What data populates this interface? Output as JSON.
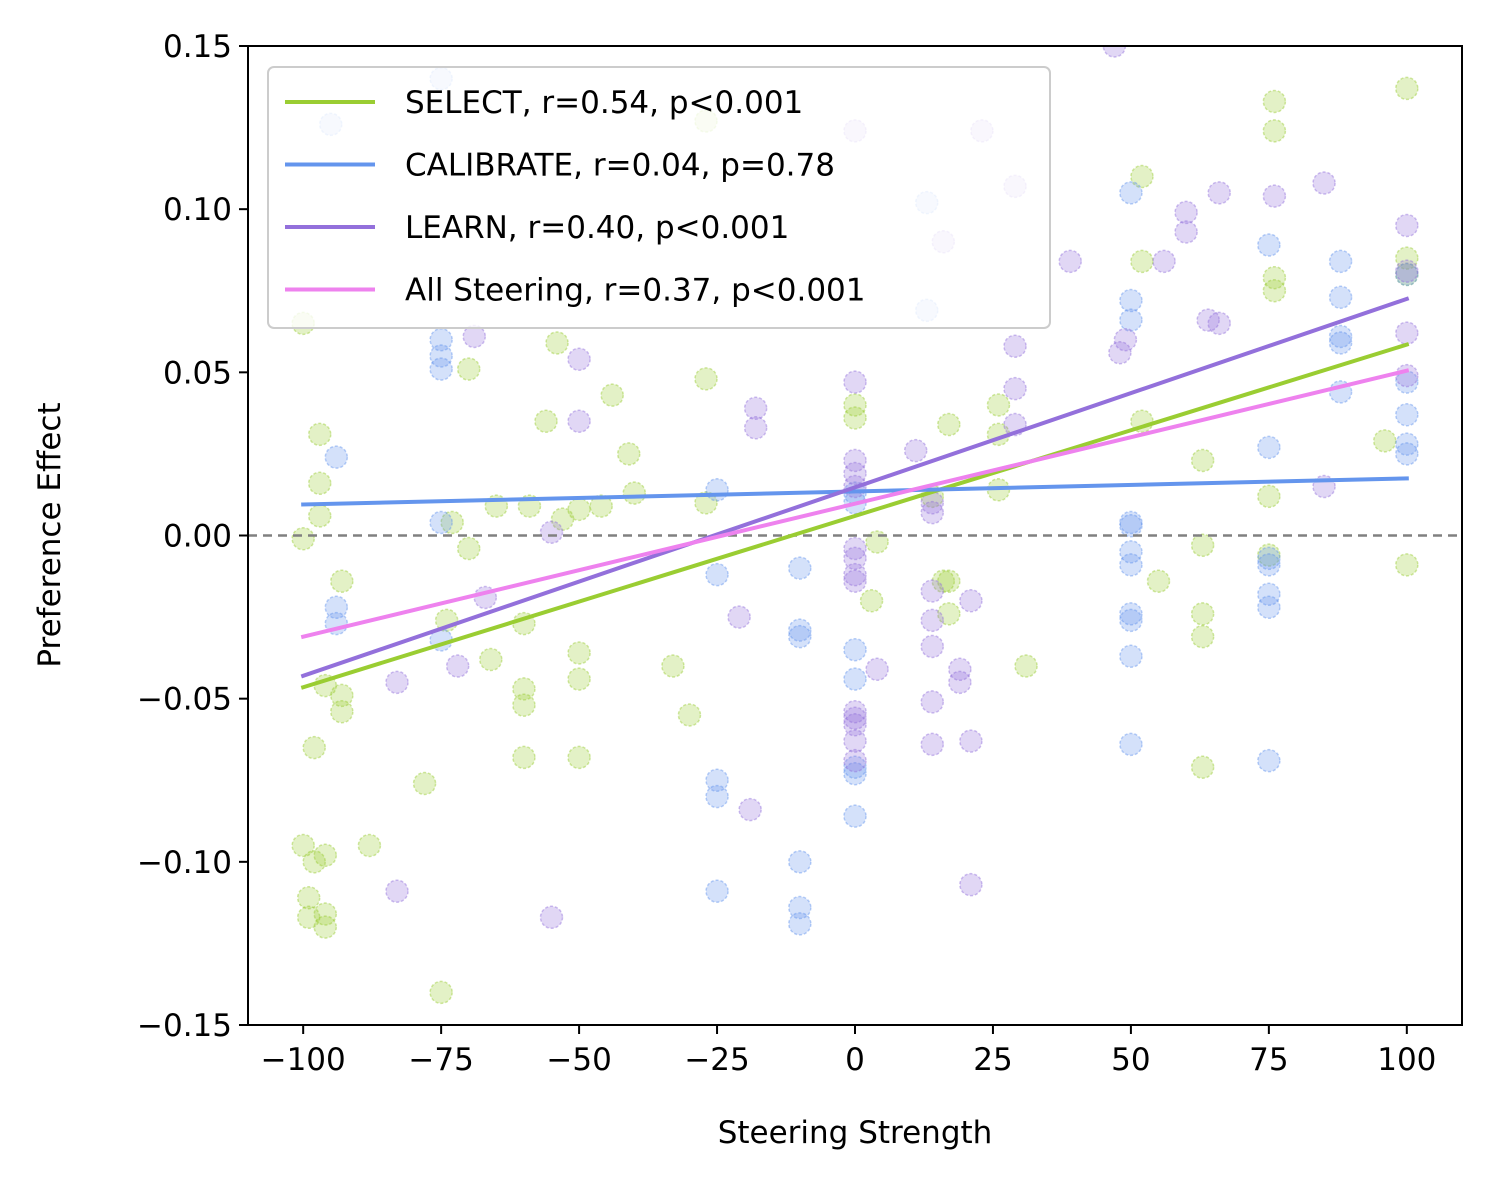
{
  "chart_data": {
    "type": "scatter",
    "title": "",
    "xlabel": "Steering Strength",
    "ylabel": "Preference Effect",
    "xlim": [
      -110,
      110
    ],
    "ylim": [
      -0.15,
      0.15
    ],
    "xticks": [
      -100,
      -75,
      -50,
      -25,
      0,
      25,
      50,
      75,
      100
    ],
    "xtick_labels": [
      "−100",
      "−75",
      "−50",
      "−25",
      "0",
      "25",
      "50",
      "75",
      "100"
    ],
    "yticks": [
      -0.15,
      -0.1,
      -0.05,
      0.0,
      0.05,
      0.1,
      0.15
    ],
    "ytick_labels": [
      "−0.15",
      "−0.10",
      "−0.05",
      "0.00",
      "0.05",
      "0.10",
      "0.15"
    ],
    "grid": false,
    "reference_line": {
      "y": 0.0,
      "color": "#808080",
      "style": "dashed"
    },
    "legend_position": "upper-left",
    "series": [
      {
        "name": "SELECT",
        "label": "SELECT, r=0.54, p<0.001",
        "color": "#9acd32",
        "fit": {
          "x": [
            -100,
            100
          ],
          "y": [
            -0.0465,
            0.0585
          ]
        },
        "points": [
          [
            -100,
            0.065
          ],
          [
            -100,
            -0.001
          ],
          [
            -100,
            -0.095
          ],
          [
            -99,
            -0.111
          ],
          [
            -99,
            -0.117
          ],
          [
            -98,
            -0.065
          ],
          [
            -98,
            -0.1
          ],
          [
            -97,
            0.031
          ],
          [
            -97,
            0.016
          ],
          [
            -97,
            0.006
          ],
          [
            -96,
            -0.046
          ],
          [
            -96,
            -0.116
          ],
          [
            -96,
            -0.12
          ],
          [
            -96,
            -0.098
          ],
          [
            -93,
            -0.014
          ],
          [
            -93,
            -0.049
          ],
          [
            -93,
            -0.054
          ],
          [
            -88,
            -0.095
          ],
          [
            -78,
            -0.076
          ],
          [
            -75,
            -0.14
          ],
          [
            -74,
            -0.026
          ],
          [
            -73,
            0.004
          ],
          [
            -70,
            0.051
          ],
          [
            -70,
            -0.004
          ],
          [
            -66,
            -0.038
          ],
          [
            -65,
            0.009
          ],
          [
            -60,
            -0.027
          ],
          [
            -60,
            -0.047
          ],
          [
            -60,
            -0.052
          ],
          [
            -60,
            -0.068
          ],
          [
            -59,
            0.009
          ],
          [
            -56,
            0.035
          ],
          [
            -54,
            0.059
          ],
          [
            -53,
            0.005
          ],
          [
            -50,
            0.008
          ],
          [
            -50,
            -0.036
          ],
          [
            -50,
            -0.044
          ],
          [
            -50,
            -0.068
          ],
          [
            -46,
            0.009
          ],
          [
            -44,
            0.043
          ],
          [
            -41,
            0.025
          ],
          [
            -40,
            0.013
          ],
          [
            -33,
            -0.04
          ],
          [
            -30,
            -0.055
          ],
          [
            -27,
            0.048
          ],
          [
            -27,
            0.01
          ],
          [
            -27,
            0.127
          ],
          [
            0,
            0.04
          ],
          [
            0,
            0.036
          ],
          [
            3,
            -0.02
          ],
          [
            4,
            -0.002
          ],
          [
            14,
            0.012
          ],
          [
            16,
            -0.014
          ],
          [
            17,
            -0.014
          ],
          [
            17,
            0.034
          ],
          [
            17,
            -0.024
          ],
          [
            26,
            0.04
          ],
          [
            26,
            0.031
          ],
          [
            26,
            0.014
          ],
          [
            31,
            -0.04
          ],
          [
            52,
            0.035
          ],
          [
            52,
            0.084
          ],
          [
            52,
            0.11
          ],
          [
            55,
            -0.014
          ],
          [
            63,
            0.023
          ],
          [
            63,
            -0.003
          ],
          [
            63,
            -0.024
          ],
          [
            63,
            -0.031
          ],
          [
            63,
            -0.071
          ],
          [
            75,
            -0.006
          ],
          [
            75,
            0.012
          ],
          [
            76,
            0.133
          ],
          [
            76,
            0.124
          ],
          [
            76,
            0.079
          ],
          [
            76,
            0.075
          ],
          [
            96,
            0.029
          ],
          [
            100,
            0.085
          ],
          [
            100,
            0.08
          ],
          [
            100,
            0.137
          ],
          [
            100,
            -0.009
          ]
        ]
      },
      {
        "name": "CALIBRATE",
        "label": "CALIBRATE, r=0.04, p=0.78",
        "color": "#6495ed",
        "fit": {
          "x": [
            -100,
            100
          ],
          "y": [
            0.0095,
            0.0175
          ]
        },
        "points": [
          [
            -95,
            0.126
          ],
          [
            -94,
            0.024
          ],
          [
            -94,
            -0.022
          ],
          [
            -94,
            -0.027
          ],
          [
            -75,
            0.14
          ],
          [
            -75,
            0.06
          ],
          [
            -75,
            0.055
          ],
          [
            -75,
            0.051
          ],
          [
            -75,
            -0.032
          ],
          [
            -75,
            0.004
          ],
          [
            -25,
            0.014
          ],
          [
            -25,
            -0.012
          ],
          [
            -25,
            -0.075
          ],
          [
            -25,
            -0.08
          ],
          [
            -25,
            -0.109
          ],
          [
            -10,
            -0.01
          ],
          [
            -10,
            -0.029
          ],
          [
            -10,
            -0.031
          ],
          [
            -10,
            -0.1
          ],
          [
            -10,
            -0.114
          ],
          [
            -10,
            -0.119
          ],
          [
            0,
            -0.035
          ],
          [
            0,
            -0.044
          ],
          [
            0,
            -0.071
          ],
          [
            0,
            -0.073
          ],
          [
            0,
            -0.086
          ],
          [
            0,
            0.013
          ],
          [
            0,
            0.01
          ],
          [
            13,
            0.102
          ],
          [
            13,
            0.069
          ],
          [
            50,
            0.105
          ],
          [
            50,
            0.072
          ],
          [
            50,
            0.066
          ],
          [
            50,
            0.004
          ],
          [
            50,
            0.003
          ],
          [
            50,
            -0.005
          ],
          [
            50,
            -0.009
          ],
          [
            50,
            -0.024
          ],
          [
            50,
            -0.026
          ],
          [
            50,
            -0.037
          ],
          [
            50,
            -0.064
          ],
          [
            75,
            0.089
          ],
          [
            75,
            0.027
          ],
          [
            75,
            -0.007
          ],
          [
            75,
            -0.009
          ],
          [
            75,
            -0.018
          ],
          [
            75,
            -0.022
          ],
          [
            75,
            -0.069
          ],
          [
            88,
            0.084
          ],
          [
            88,
            0.073
          ],
          [
            88,
            0.061
          ],
          [
            88,
            0.059
          ],
          [
            88,
            0.044
          ],
          [
            100,
            0.08
          ],
          [
            100,
            0.047
          ],
          [
            100,
            0.037
          ],
          [
            100,
            0.028
          ],
          [
            100,
            0.025
          ]
        ]
      },
      {
        "name": "LEARN",
        "label": "LEARN, r=0.40, p<0.001",
        "color": "#9370db",
        "fit": {
          "x": [
            -100,
            100
          ],
          "y": [
            -0.043,
            0.0725
          ]
        },
        "points": [
          [
            -83,
            -0.045
          ],
          [
            -83,
            -0.109
          ],
          [
            -72,
            -0.04
          ],
          [
            -69,
            0.061
          ],
          [
            -67,
            -0.019
          ],
          [
            -55,
            0.001
          ],
          [
            -55,
            -0.117
          ],
          [
            -50,
            0.054
          ],
          [
            -50,
            0.035
          ],
          [
            -21,
            -0.025
          ],
          [
            -19,
            -0.084
          ],
          [
            -18,
            0.039
          ],
          [
            -18,
            0.033
          ],
          [
            0,
            0.124
          ],
          [
            0,
            0.047
          ],
          [
            0,
            0.023
          ],
          [
            0,
            0.019
          ],
          [
            0,
            0.015
          ],
          [
            0,
            -0.004
          ],
          [
            0,
            -0.007
          ],
          [
            0,
            -0.012
          ],
          [
            0,
            -0.014
          ],
          [
            0,
            -0.054
          ],
          [
            0,
            -0.056
          ],
          [
            0,
            -0.058
          ],
          [
            0,
            -0.063
          ],
          [
            0,
            -0.069
          ],
          [
            4,
            -0.041
          ],
          [
            11,
            0.026
          ],
          [
            14,
            0.01
          ],
          [
            14,
            0.007
          ],
          [
            14,
            -0.017
          ],
          [
            14,
            -0.026
          ],
          [
            14,
            -0.034
          ],
          [
            14,
            -0.051
          ],
          [
            14,
            -0.064
          ],
          [
            16,
            0.09
          ],
          [
            19,
            -0.041
          ],
          [
            19,
            -0.045
          ],
          [
            21,
            -0.02
          ],
          [
            21,
            -0.063
          ],
          [
            21,
            -0.107
          ],
          [
            23,
            0.124
          ],
          [
            29,
            0.107
          ],
          [
            29,
            0.058
          ],
          [
            29,
            0.045
          ],
          [
            29,
            0.034
          ],
          [
            39,
            0.084
          ],
          [
            47,
            0.15
          ],
          [
            48,
            0.056
          ],
          [
            49,
            0.06
          ],
          [
            56,
            0.084
          ],
          [
            60,
            0.099
          ],
          [
            60,
            0.093
          ],
          [
            64,
            0.066
          ],
          [
            66,
            0.105
          ],
          [
            66,
            0.065
          ],
          [
            76,
            0.104
          ],
          [
            85,
            0.108
          ],
          [
            85,
            0.015
          ],
          [
            100,
            0.095
          ],
          [
            100,
            0.081
          ],
          [
            100,
            0.062
          ],
          [
            100,
            0.049
          ]
        ]
      },
      {
        "name": "All Steering",
        "label": "All Steering, r=0.37, p<0.001",
        "color": "#ee82ee",
        "fit": {
          "x": [
            -100,
            100
          ],
          "y": [
            -0.031,
            0.0505
          ]
        },
        "points": []
      }
    ]
  }
}
